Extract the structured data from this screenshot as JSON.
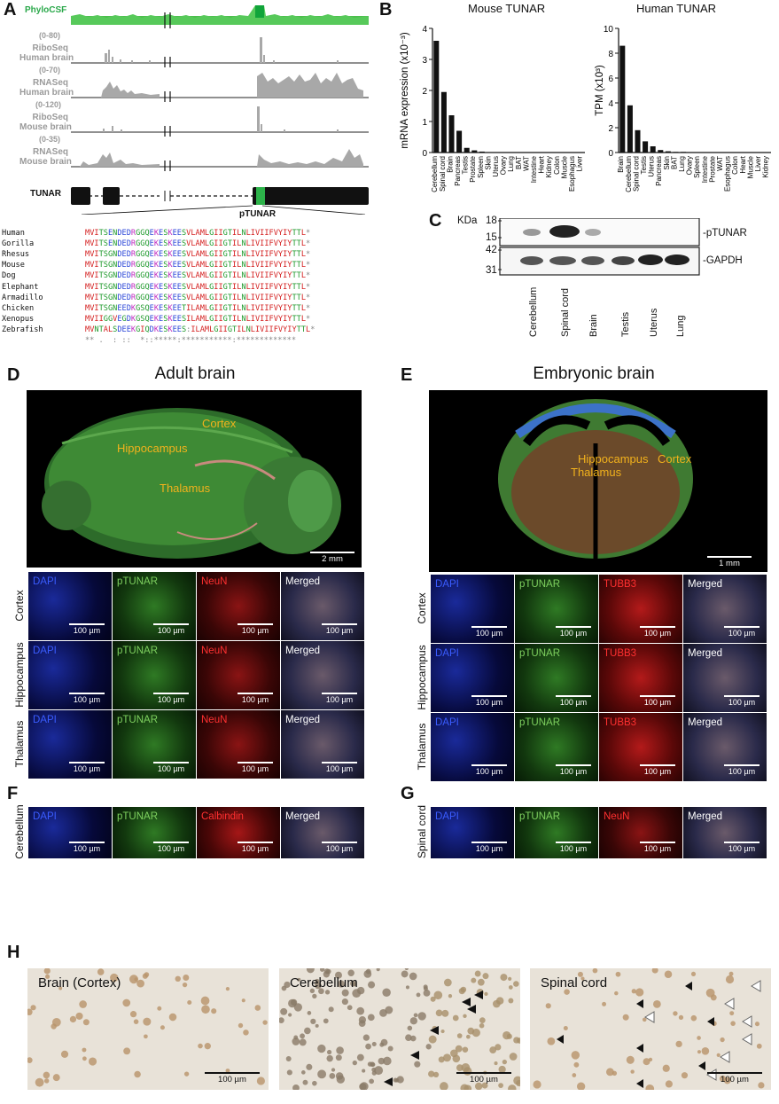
{
  "panels": {
    "A": "A",
    "B": "B",
    "C": "C",
    "D": "D",
    "E": "E",
    "F": "F",
    "G": "G",
    "H": "H"
  },
  "panel_a": {
    "tracks": [
      {
        "label": "PhyloCSF",
        "color": "#2aa84a",
        "range": ""
      },
      {
        "label": "RiboSeq\nHuman brain",
        "color": "#9a9a9a",
        "range": "(0-80)"
      },
      {
        "label": "RNASeq\nHuman brain",
        "color": "#9a9a9a",
        "range": "(0-70)"
      },
      {
        "label": "RiboSeq\nMouse brain",
        "color": "#9a9a9a",
        "range": "(0-120)"
      },
      {
        "label": "RNASeq\nMouse brain",
        "color": "#9a9a9a",
        "range": "(0-35)"
      }
    ],
    "gene_label": "TUNAR",
    "orf_label": "pTUNAR",
    "orf_color": "#2db34a",
    "alignment": [
      {
        "species": "Human",
        "seq": "MVITSENDEDRGGQEKESKEESVLAMLGIIGTILNLIVIIFVYIYTTL*"
      },
      {
        "species": "Gorilla",
        "seq": "MVITSENDEDRGGQEKESKEESVLAMLGIIGTILNLIVIIFVYIYTTL*"
      },
      {
        "species": "Rhesus",
        "seq": "MVITSGNDEDRGGQEKESKEESVLAMLGIIGTILNLIVIIFVYIYTTL*"
      },
      {
        "species": "Mouse",
        "seq": "MVITSGNDEDRGGQEKESKEESVLAMLGIIGTILNLIVIIFVYIYTTL*"
      },
      {
        "species": "Dog",
        "seq": "MVITSGNDEDRGGQEKESKEESVLAMLGIIGTILNLIVIIFVYIYTTL*"
      },
      {
        "species": "Elephant",
        "seq": "MVITSGNDEDRGGQEKESKEESVLAMLGIIGTILNLIVIIFVYIYTTL*"
      },
      {
        "species": "Armadillo",
        "seq": "MVITSGNDEDRGGQEKESKEESVLAMLGIIGTILNLIVIIFVYIYTTL*"
      },
      {
        "species": "Chicken",
        "seq": "MVITSGNEEDKGSQEKESKEETILAMLGIIGTILNLIVIIFVYIYTTL*"
      },
      {
        "species": "Xenopus",
        "seq": "MVIIGGVEGDKGSQEKESKEESILAMLGIIGTILNLIVIIFVYIYTTL*"
      },
      {
        "species": "Zebrafish",
        "seq": "MVNTALSDEEKGIQDKESKEES:ILAMLGIIGTILNLIVIIFVYIYTTL*"
      }
    ],
    "consensus": "** .  : ::  *::*****:***********:*************"
  },
  "chart_data": [
    {
      "type": "bar",
      "title": "Mouse TUNAR",
      "ylabel": "mRNA expression (x10⁻³)",
      "ylim": [
        0,
        4
      ],
      "yticks": [
        "0",
        "1",
        "2",
        "3",
        "4"
      ],
      "categories": [
        "Cerebellum",
        "Spinal cord",
        "Brain",
        "Pancreas",
        "Testis",
        "Prostate",
        "Spleen",
        "Skin",
        "Uterus",
        "Ovary",
        "Lung",
        "BAT",
        "WAT",
        "Intestine",
        "Heart",
        "Kidney",
        "Colon",
        "Muscle",
        "Esophagus",
        "Liver"
      ],
      "values": [
        3.6,
        1.95,
        1.2,
        0.7,
        0.15,
        0.07,
        0.03,
        0.01,
        0.01,
        0.01,
        0.01,
        0.01,
        0.01,
        0.01,
        0.01,
        0.01,
        0.01,
        0.01,
        0.01,
        0.01
      ]
    },
    {
      "type": "bar",
      "title": "Human TUNAR",
      "ylabel": "TPM (x10³)",
      "ylim": [
        0,
        10
      ],
      "yticks": [
        "0",
        "2",
        "4",
        "6",
        "8",
        "10"
      ],
      "categories": [
        "Brain",
        "Cerebellum",
        "Spinal cord",
        "Testis",
        "Uterus",
        "Pancreas",
        "Skin",
        "BAT",
        "Lung",
        "Ovary",
        "Spleen",
        "Intestine",
        "Prostate",
        "WAT",
        "Esophagus",
        "Colon",
        "Heart",
        "Muscle",
        "Liver",
        "Kidney"
      ],
      "values": [
        8.6,
        3.8,
        1.8,
        0.9,
        0.5,
        0.2,
        0.1,
        0.05,
        0.05,
        0.03,
        0.03,
        0.03,
        0.03,
        0.03,
        0.02,
        0.02,
        0.02,
        0.02,
        0.02,
        0.02
      ]
    }
  ],
  "panel_c": {
    "kda_label": "KDa",
    "markers_top": [
      "18",
      "15"
    ],
    "markers_bottom": [
      "42",
      "31"
    ],
    "band_top": "-pTUNAR",
    "band_bottom": "-GAPDH",
    "lanes": [
      "Cerebellum",
      "Spinal cord",
      "Brain",
      "Testis",
      "Uterus",
      "Lung"
    ]
  },
  "panel_d": {
    "title": "Adult brain",
    "regions": [
      "Cortex",
      "Hippocampus",
      "Thalamus"
    ],
    "scale": "2 mm",
    "rows": [
      "Cortex",
      "Hippocampus",
      "Thalamus"
    ],
    "channels": [
      "DAPI",
      "pTUNAR",
      "NeuN",
      "Merged"
    ],
    "scale_small": "100 µm"
  },
  "panel_e": {
    "title": "Embryonic brain",
    "regions": [
      "Hippocampus",
      "Cortex",
      "Thalamus"
    ],
    "scale": "1 mm",
    "rows": [
      "Cortex",
      "Hippocampus",
      "Thalamus"
    ],
    "channels": [
      "DAPI",
      "pTUNAR",
      "TUBB3",
      "Merged"
    ],
    "scale_small": "100 µm"
  },
  "panel_f": {
    "row": "Cerebellum",
    "channels": [
      "DAPI",
      "pTUNAR",
      "Calbindin",
      "Merged"
    ],
    "scale_small": "100 µm"
  },
  "panel_g": {
    "row": "Spinal cord",
    "channels": [
      "DAPI",
      "pTUNAR",
      "NeuN",
      "Merged"
    ],
    "scale_small": "100 µm"
  },
  "panel_h": {
    "images": [
      {
        "title": "Brain (Cortex)",
        "scale": "100 µm"
      },
      {
        "title": "Cerebellum",
        "scale": "100 µm"
      },
      {
        "title": "Spinal cord",
        "scale": "100 µm"
      }
    ]
  }
}
